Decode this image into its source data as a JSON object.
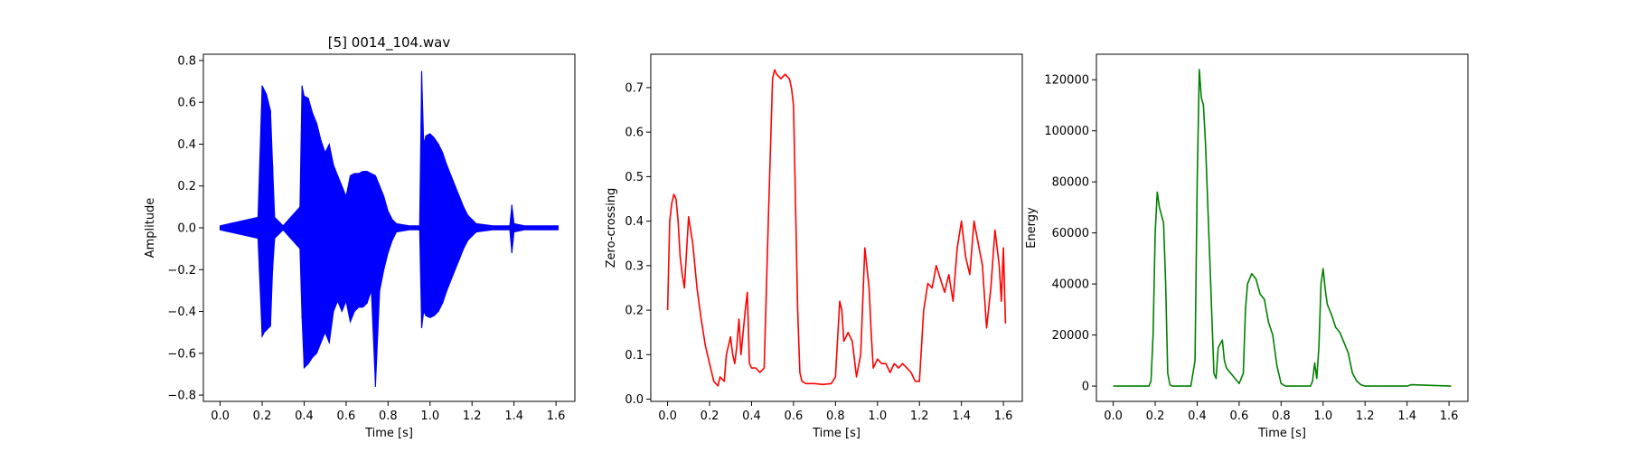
{
  "chart_data": [
    {
      "type": "line",
      "title": "[5] 0014_104.wav",
      "xlabel": "Time [s]",
      "ylabel": "Amplitude",
      "xlim": [
        -0.08,
        1.69
      ],
      "ylim": [
        -0.83,
        0.83
      ],
      "xticks": [
        0.0,
        0.2,
        0.4,
        0.6,
        0.8,
        1.0,
        1.2,
        1.4,
        1.6
      ],
      "xtick_labels": [
        "0.0",
        "0.2",
        "0.4",
        "0.6",
        "0.8",
        "1.0",
        "1.2",
        "1.4",
        "1.6"
      ],
      "yticks": [
        -0.8,
        -0.6,
        -0.4,
        -0.2,
        0.0,
        0.2,
        0.4,
        0.6,
        0.8
      ],
      "ytick_labels": [
        "−0.8",
        "−0.6",
        "−0.4",
        "−0.2",
        "0.0",
        "0.2",
        "0.4",
        "0.6",
        "0.8"
      ],
      "color": "#0000ff",
      "grid": false,
      "series": [
        {
          "style": "waveform",
          "x": [
            0.0,
            0.18,
            0.2,
            0.21,
            0.22,
            0.24,
            0.25,
            0.26,
            0.3,
            0.38,
            0.39,
            0.4,
            0.42,
            0.44,
            0.46,
            0.48,
            0.5,
            0.52,
            0.54,
            0.56,
            0.58,
            0.6,
            0.62,
            0.64,
            0.66,
            0.68,
            0.7,
            0.72,
            0.74,
            0.76,
            0.78,
            0.8,
            0.82,
            0.84,
            0.9,
            0.95,
            0.96,
            0.97,
            0.98,
            1.0,
            1.02,
            1.04,
            1.06,
            1.08,
            1.1,
            1.12,
            1.14,
            1.16,
            1.18,
            1.2,
            1.22,
            1.3,
            1.38,
            1.39,
            1.4,
            1.45,
            1.61
          ],
          "upper": [
            0.01,
            0.05,
            0.68,
            0.66,
            0.64,
            0.56,
            0.3,
            0.05,
            0.01,
            0.1,
            0.68,
            0.63,
            0.62,
            0.55,
            0.5,
            0.42,
            0.36,
            0.4,
            0.3,
            0.25,
            0.2,
            0.15,
            0.25,
            0.26,
            0.26,
            0.27,
            0.27,
            0.26,
            0.25,
            0.2,
            0.15,
            0.08,
            0.04,
            0.02,
            0.01,
            0.01,
            0.75,
            0.4,
            0.44,
            0.45,
            0.43,
            0.4,
            0.36,
            0.3,
            0.25,
            0.2,
            0.15,
            0.1,
            0.06,
            0.04,
            0.02,
            0.01,
            0.01,
            0.11,
            0.02,
            0.01,
            0.01
          ],
          "lower": [
            -0.01,
            -0.05,
            -0.52,
            -0.5,
            -0.49,
            -0.47,
            -0.2,
            -0.05,
            -0.01,
            -0.1,
            -0.43,
            -0.67,
            -0.65,
            -0.62,
            -0.6,
            -0.55,
            -0.5,
            -0.55,
            -0.4,
            -0.35,
            -0.4,
            -0.35,
            -0.45,
            -0.4,
            -0.38,
            -0.38,
            -0.36,
            -0.3,
            -0.76,
            -0.3,
            -0.2,
            -0.12,
            -0.06,
            -0.02,
            -0.01,
            -0.01,
            -0.48,
            -0.4,
            -0.42,
            -0.43,
            -0.42,
            -0.4,
            -0.36,
            -0.3,
            -0.25,
            -0.2,
            -0.15,
            -0.1,
            -0.06,
            -0.04,
            -0.02,
            -0.01,
            -0.01,
            -0.12,
            -0.02,
            -0.01,
            -0.01
          ]
        }
      ]
    },
    {
      "type": "line",
      "title": "",
      "xlabel": "Time [s]",
      "ylabel": "Zero-crossing",
      "xlim": [
        -0.08,
        1.69
      ],
      "ylim": [
        -0.005,
        0.775
      ],
      "xticks": [
        0.0,
        0.2,
        0.4,
        0.6,
        0.8,
        1.0,
        1.2,
        1.4,
        1.6
      ],
      "xtick_labels": [
        "0.0",
        "0.2",
        "0.4",
        "0.6",
        "0.8",
        "1.0",
        "1.2",
        "1.4",
        "1.6"
      ],
      "yticks": [
        0.0,
        0.1,
        0.2,
        0.3,
        0.4,
        0.5,
        0.6,
        0.7
      ],
      "ytick_labels": [
        "0.0",
        "0.1",
        "0.2",
        "0.3",
        "0.4",
        "0.5",
        "0.6",
        "0.7"
      ],
      "color": "#ff0000",
      "grid": false,
      "series": [
        {
          "x": [
            0.0,
            0.01,
            0.02,
            0.03,
            0.04,
            0.05,
            0.06,
            0.07,
            0.08,
            0.1,
            0.12,
            0.14,
            0.16,
            0.18,
            0.2,
            0.22,
            0.24,
            0.25,
            0.27,
            0.28,
            0.3,
            0.31,
            0.32,
            0.33,
            0.34,
            0.35,
            0.37,
            0.38,
            0.39,
            0.4,
            0.42,
            0.44,
            0.46,
            0.48,
            0.5,
            0.51,
            0.52,
            0.54,
            0.56,
            0.58,
            0.59,
            0.6,
            0.62,
            0.63,
            0.64,
            0.66,
            0.7,
            0.74,
            0.78,
            0.8,
            0.82,
            0.83,
            0.84,
            0.86,
            0.88,
            0.9,
            0.92,
            0.94,
            0.96,
            0.97,
            0.98,
            1.0,
            1.02,
            1.04,
            1.06,
            1.08,
            1.1,
            1.12,
            1.14,
            1.16,
            1.18,
            1.2,
            1.22,
            1.24,
            1.26,
            1.28,
            1.3,
            1.32,
            1.34,
            1.36,
            1.38,
            1.4,
            1.42,
            1.44,
            1.46,
            1.48,
            1.5,
            1.52,
            1.54,
            1.56,
            1.58,
            1.59,
            1.6,
            1.61
          ],
          "y": [
            0.2,
            0.4,
            0.44,
            0.46,
            0.45,
            0.4,
            0.32,
            0.28,
            0.25,
            0.41,
            0.35,
            0.25,
            0.18,
            0.12,
            0.08,
            0.04,
            0.03,
            0.05,
            0.04,
            0.1,
            0.14,
            0.1,
            0.08,
            0.12,
            0.18,
            0.1,
            0.2,
            0.24,
            0.08,
            0.07,
            0.07,
            0.06,
            0.07,
            0.4,
            0.72,
            0.74,
            0.73,
            0.72,
            0.73,
            0.72,
            0.7,
            0.66,
            0.2,
            0.06,
            0.04,
            0.035,
            0.035,
            0.033,
            0.035,
            0.05,
            0.22,
            0.2,
            0.13,
            0.15,
            0.13,
            0.05,
            0.1,
            0.34,
            0.25,
            0.15,
            0.07,
            0.09,
            0.08,
            0.08,
            0.06,
            0.08,
            0.07,
            0.08,
            0.07,
            0.06,
            0.04,
            0.04,
            0.2,
            0.26,
            0.25,
            0.3,
            0.27,
            0.24,
            0.28,
            0.22,
            0.34,
            0.4,
            0.32,
            0.28,
            0.4,
            0.35,
            0.3,
            0.16,
            0.25,
            0.38,
            0.3,
            0.22,
            0.34,
            0.17
          ]
        }
      ]
    },
    {
      "type": "line",
      "title": "",
      "xlabel": "Time [s]",
      "ylabel": "Energy",
      "xlim": [
        -0.08,
        1.69
      ],
      "ylim": [
        -6000,
        130000
      ],
      "xticks": [
        0.0,
        0.2,
        0.4,
        0.6,
        0.8,
        1.0,
        1.2,
        1.4,
        1.6
      ],
      "xtick_labels": [
        "0.0",
        "0.2",
        "0.4",
        "0.6",
        "0.8",
        "1.0",
        "1.2",
        "1.4",
        "1.6"
      ],
      "yticks": [
        0,
        20000,
        40000,
        60000,
        80000,
        100000,
        120000
      ],
      "ytick_labels": [
        "0",
        "20000",
        "40000",
        "60000",
        "80000",
        "100000",
        "120000"
      ],
      "color": "#008000",
      "grid": false,
      "series": [
        {
          "x": [
            0.0,
            0.17,
            0.18,
            0.19,
            0.2,
            0.21,
            0.22,
            0.24,
            0.25,
            0.26,
            0.27,
            0.28,
            0.3,
            0.37,
            0.39,
            0.4,
            0.41,
            0.42,
            0.43,
            0.44,
            0.46,
            0.48,
            0.49,
            0.5,
            0.52,
            0.53,
            0.54,
            0.56,
            0.58,
            0.6,
            0.62,
            0.63,
            0.64,
            0.66,
            0.68,
            0.7,
            0.72,
            0.74,
            0.76,
            0.78,
            0.8,
            0.82,
            0.94,
            0.95,
            0.96,
            0.97,
            0.98,
            0.99,
            1.0,
            1.01,
            1.02,
            1.04,
            1.06,
            1.08,
            1.1,
            1.12,
            1.14,
            1.16,
            1.18,
            1.2,
            1.22,
            1.3,
            1.4,
            1.42,
            1.61
          ],
          "y": [
            0,
            0,
            2000,
            20000,
            60000,
            76000,
            70000,
            64000,
            40000,
            5000,
            500,
            0,
            0,
            0,
            10000,
            80000,
            124000,
            113000,
            110000,
            95000,
            50000,
            5000,
            3000,
            15000,
            18000,
            10000,
            7000,
            5000,
            3000,
            1000,
            5000,
            30000,
            40000,
            44000,
            42000,
            36000,
            34000,
            25000,
            20000,
            8000,
            1000,
            0,
            0,
            2000,
            9000,
            3000,
            15000,
            40000,
            46000,
            38000,
            32000,
            28000,
            23000,
            21000,
            17000,
            13000,
            5000,
            2000,
            500,
            0,
            0,
            0,
            0,
            500,
            0
          ]
        }
      ]
    }
  ]
}
